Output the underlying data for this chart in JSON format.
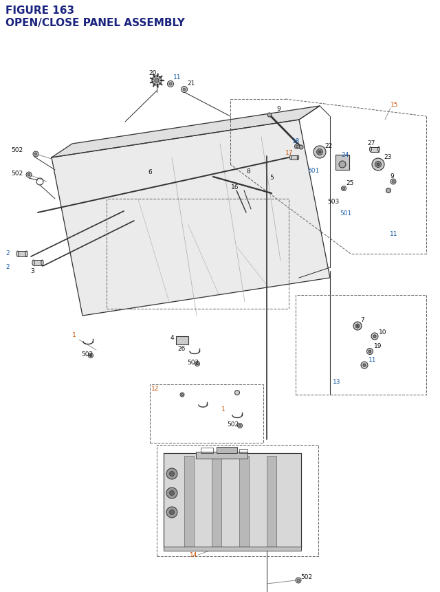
{
  "title_line1": "FIGURE 163",
  "title_line2": "OPEN/CLOSE PANEL ASSEMBLY",
  "title_color": "#1a237e",
  "title_fontsize": 11,
  "bg_color": "#ffffff",
  "fig_width": 6.4,
  "fig_height": 8.62,
  "label_color_orange": "#c85000",
  "label_color_blue": "#1a5ca8",
  "label_color_black": "#111111",
  "label_fontsize": 6.5,
  "dashed_box_color": "#666666",
  "line_color": "#333333"
}
